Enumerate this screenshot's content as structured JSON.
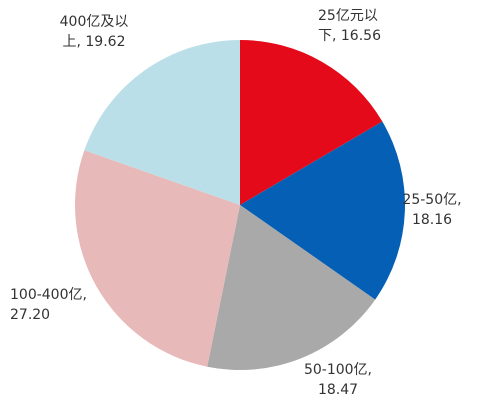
{
  "chart_data": {
    "type": "pie",
    "labels": [
      "25亿元以下, 16.56",
      "25-50亿, 18.16",
      "50-100亿, 18.47",
      "100-400亿, 27.20",
      "400亿及以上, 19.62"
    ],
    "values": [
      16.56,
      18.16,
      18.47,
      27.2,
      19.62
    ],
    "colors": [
      "#e50a19",
      "#0560b5",
      "#a9a9a9",
      "#e8b9b9",
      "#badfe9"
    ]
  }
}
